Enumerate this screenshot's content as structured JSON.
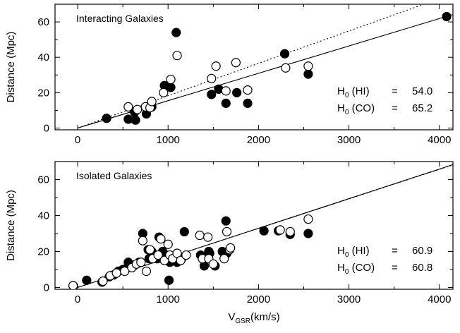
{
  "chart_data": [
    {
      "type": "scatter",
      "title": "Interacting Galaxies",
      "ylabel": "Distance (Mpc)",
      "xlabel": "",
      "xlim": [
        -250,
        4150
      ],
      "ylim": [
        -1,
        70
      ],
      "xticks": [
        0,
        1000,
        2000,
        3000,
        4000
      ],
      "yticks": [
        0,
        20,
        40,
        60
      ],
      "show_x_tick_labels": true,
      "grid": false,
      "annotations": [
        {
          "prefix": "H",
          "sub": "0",
          "label": " (HI)",
          "eq": "=",
          "value": "54.0"
        },
        {
          "prefix": "H",
          "sub": "0",
          "label": " (CO)",
          "eq": "=",
          "value": "65.2"
        }
      ],
      "fit_lines": [
        {
          "style": "solid",
          "x": [
            0,
            4150
          ],
          "y": [
            0,
            64.2
          ]
        },
        {
          "style": "dotted",
          "x": [
            0,
            4150
          ],
          "y": [
            0,
            75.9
          ]
        }
      ],
      "series": [
        {
          "marker": "filled",
          "x": [
            320,
            560,
            640,
            630,
            760,
            820,
            960,
            1030,
            1090,
            1480,
            1560,
            1640,
            1760,
            1880,
            2290,
            2550,
            4080
          ],
          "y": [
            5.5,
            5,
            4.5,
            9,
            8,
            12,
            24,
            23,
            54,
            19,
            22,
            14,
            20,
            14,
            42,
            30.5,
            63
          ]
        },
        {
          "marker": "open",
          "x": [
            560,
            660,
            750,
            800,
            820,
            950,
            1030,
            1100,
            1480,
            1530,
            1640,
            1750,
            1880,
            2300,
            2550
          ],
          "y": [
            12,
            10.5,
            12,
            11.5,
            15,
            20,
            27.5,
            41,
            28,
            35,
            21,
            37,
            21.5,
            34,
            35
          ]
        }
      ]
    },
    {
      "type": "scatter",
      "title": "Isolated Galaxies",
      "ylabel": "Distance (Mpc)",
      "xlabel": "V",
      "xlabel_sub": "GSR",
      "xlabel_suffix": "(km/s)",
      "xlim": [
        -250,
        4150
      ],
      "ylim": [
        -1,
        70
      ],
      "xticks": [
        0,
        1000,
        2000,
        3000,
        4000
      ],
      "yticks": [
        0,
        20,
        40,
        60
      ],
      "show_x_tick_labels": true,
      "grid": false,
      "annotations": [
        {
          "prefix": "H",
          "sub": "0",
          "label": " (HI)",
          "eq": "=",
          "value": "60.9"
        },
        {
          "prefix": "H",
          "sub": "0",
          "label": " (CO)",
          "eq": "=",
          "value": "60.8"
        }
      ],
      "fit_lines": [
        {
          "style": "solid",
          "x": [
            0,
            4150
          ],
          "y": [
            0,
            68.3
          ]
        },
        {
          "style": "dotted",
          "x": [
            0,
            4150
          ],
          "y": [
            0,
            68.1
          ]
        }
      ],
      "series": [
        {
          "marker": "filled",
          "x": [
            -50,
            100,
            270,
            350,
            400,
            450,
            500,
            550,
            560,
            620,
            680,
            720,
            780,
            790,
            820,
            880,
            900,
            940,
            980,
            1010,
            1020,
            1050,
            1100,
            1110,
            1150,
            1180,
            1360,
            1400,
            1420,
            1450,
            1460,
            1520,
            1600,
            1640,
            1650,
            2060,
            2220,
            2350,
            2550
          ],
          "y": [
            1,
            4,
            3,
            6,
            7,
            9,
            10,
            11,
            14,
            12,
            14,
            30,
            21,
            16,
            20,
            16,
            28,
            20,
            18,
            4,
            14,
            17,
            14,
            17,
            16,
            31,
            18,
            12,
            16,
            20,
            19,
            12,
            20,
            37,
            19,
            31.5,
            31.5,
            29.5,
            30
          ]
        },
        {
          "marker": "open",
          "x": [
            -50,
            280,
            360,
            430,
            520,
            600,
            650,
            700,
            720,
            760,
            800,
            830,
            890,
            920,
            960,
            1000,
            1020,
            1050,
            1100,
            1140,
            1200,
            1350,
            1380,
            1440,
            1450,
            1500,
            1620,
            1650,
            1680,
            1690,
            2240,
            2350,
            2550
          ],
          "y": [
            1,
            3.5,
            6.5,
            8,
            9,
            11,
            13,
            14,
            26,
            9,
            21,
            16,
            18,
            27,
            15,
            24,
            18,
            16,
            19,
            15,
            18,
            29,
            16,
            28,
            16,
            13,
            16,
            31,
            21,
            22,
            32,
            31,
            38
          ]
        }
      ]
    }
  ]
}
